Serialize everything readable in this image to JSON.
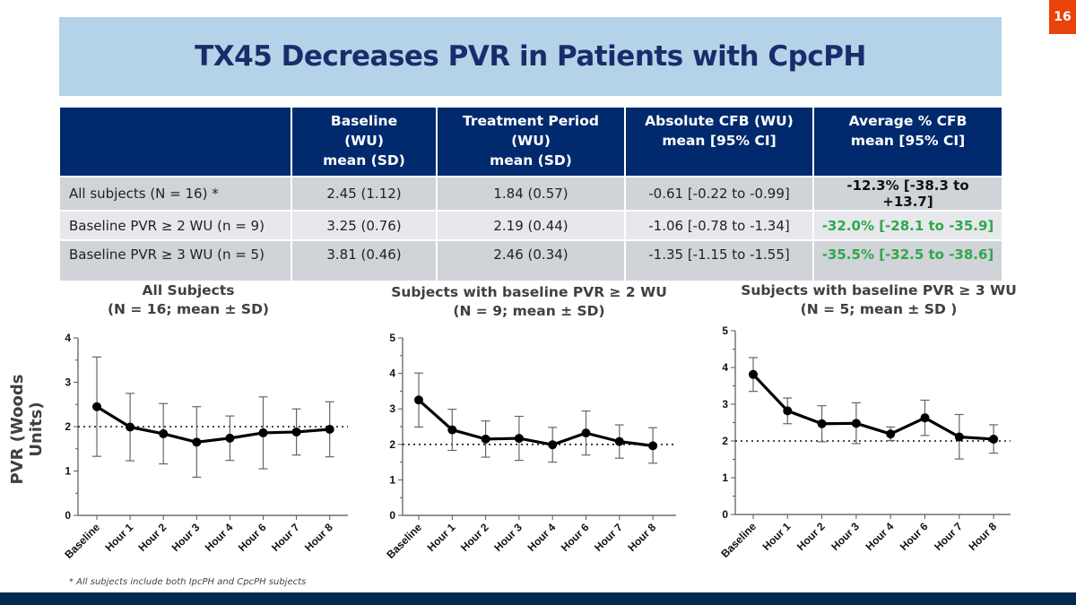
{
  "page_number": "16",
  "title": "TX45 Decreases PVR in Patients with CpcPH",
  "table": {
    "headers": [
      "",
      "Baseline\n(WU)\nmean (SD)",
      "Treatment Period\n(WU)\nmean (SD)",
      "Absolute CFB (WU)\nmean [95% CI]",
      "Average % CFB\nmean [95% CI]"
    ],
    "header_lines": [
      [],
      [
        "Baseline",
        "(WU)",
        "mean (SD)"
      ],
      [
        "Treatment Period",
        "(WU)",
        "mean (SD)"
      ],
      [
        "Absolute CFB (WU)",
        "mean [95% CI]"
      ],
      [
        "Average % CFB",
        "mean [95% CI]"
      ]
    ],
    "rows": [
      [
        "All subjects (N = 16) *",
        "2.45 (1.12)",
        "1.84 (0.57)",
        "-0.61 [-0.22 to -0.99]",
        "-12.3% [-38.3 to +13.7]"
      ],
      [
        "Baseline PVR ≥ 2 WU (n = 9)",
        "3.25 (0.76)",
        "2.19 (0.44)",
        "-1.06 [-0.78 to -1.34]",
        "-32.0% [-28.1 to -35.9]"
      ],
      [
        "Baseline PVR ≥ 3 WU (n = 5)",
        "3.81 (0.46)",
        "2.46 (0.34)",
        "-1.35 [-1.15 to -1.55]",
        "-35.5% [-32.5 to -38.6]"
      ]
    ],
    "last_col_colors": [
      "#111111",
      "#2ea84a",
      "#2ea84a"
    ]
  },
  "y_axis_label": "PVR (Woods Units)",
  "footnote": "* All subjects include both IpcPH and CpcPH subjects",
  "colors": {
    "banner": "#b4d3e8",
    "title_text": "#1a2c6b",
    "table_header": "#002a6d",
    "page_badge": "#e8430a",
    "footer_bar": "#002a4e",
    "highlight_green": "#2ea84a"
  },
  "chart_data": [
    {
      "type": "line",
      "title": "All Subjects",
      "subtitle": "(N = 16; mean ± SD)",
      "xlabel": "",
      "ylabel": "PVR (Woods Units)",
      "categories": [
        "Baseline",
        "Hour 1",
        "Hour 2",
        "Hour 3",
        "Hour 4",
        "Hour 6",
        "Hour 7",
        "Hour 8"
      ],
      "values": [
        2.45,
        1.99,
        1.84,
        1.65,
        1.74,
        1.86,
        1.88,
        1.94
      ],
      "error_low": [
        1.33,
        1.23,
        1.16,
        0.86,
        1.24,
        1.05,
        1.36,
        1.32
      ],
      "error_high": [
        3.57,
        2.75,
        2.52,
        2.45,
        2.24,
        2.67,
        2.4,
        2.56
      ],
      "reference_line": 2,
      "ylim": [
        0,
        4
      ],
      "yticks": [
        0,
        1,
        2,
        3,
        4
      ],
      "grid": false
    },
    {
      "type": "line",
      "title": "Subjects with baseline PVR ≥ 2 WU",
      "subtitle": "(N = 9; mean ± SD)",
      "xlabel": "",
      "ylabel": "",
      "categories": [
        "Baseline",
        "Hour 1",
        "Hour 2",
        "Hour 3",
        "Hour 4",
        "Hour 6",
        "Hour 7",
        "Hour 8"
      ],
      "values": [
        3.25,
        2.41,
        2.15,
        2.17,
        1.99,
        2.32,
        2.08,
        1.96
      ],
      "error_low": [
        2.49,
        1.83,
        1.64,
        1.55,
        1.5,
        1.7,
        1.61,
        1.47
      ],
      "error_high": [
        4.01,
        2.99,
        2.66,
        2.79,
        2.48,
        2.94,
        2.55,
        2.47
      ],
      "reference_line": 2,
      "ylim": [
        0,
        5
      ],
      "yticks": [
        0,
        1,
        2,
        3,
        4,
        5
      ],
      "grid": false
    },
    {
      "type": "line",
      "title": "Subjects with baseline PVR ≥ 3 WU",
      "subtitle": "(N = 5; mean ± SD )",
      "xlabel": "",
      "ylabel": "",
      "categories": [
        "Baseline",
        "Hour 1",
        "Hour 2",
        "Hour 3",
        "Hour 4",
        "Hour 6",
        "Hour 7",
        "Hour 8"
      ],
      "values": [
        3.81,
        2.82,
        2.47,
        2.48,
        2.19,
        2.63,
        2.11,
        2.05
      ],
      "error_low": [
        3.35,
        2.47,
        1.98,
        1.93,
        2.01,
        2.15,
        1.51,
        1.67
      ],
      "error_high": [
        4.27,
        3.17,
        2.96,
        3.04,
        2.38,
        3.11,
        2.72,
        2.44
      ],
      "reference_line": 2,
      "ylim": [
        0,
        5
      ],
      "yticks": [
        0,
        1,
        2,
        3,
        4,
        5
      ],
      "grid": false
    }
  ]
}
